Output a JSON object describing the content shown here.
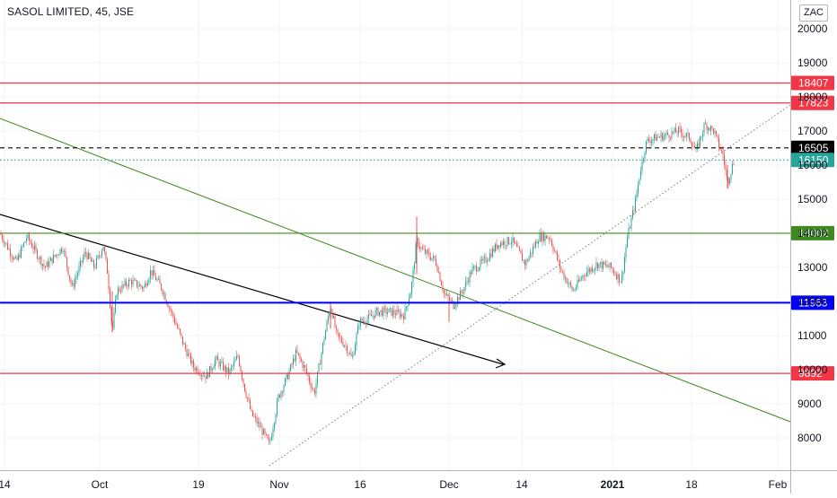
{
  "header": {
    "title": "SASOL LIMITED, 45, JSE",
    "unit_badge": "ZAC"
  },
  "chart_data": {
    "type": "candlestick",
    "symbol": "SASOL LIMITED",
    "interval": "45",
    "exchange": "JSE",
    "currency": "ZAC",
    "y_ticks": [
      8000,
      9000,
      10000,
      11000,
      12000,
      13000,
      14000,
      15000,
      16000,
      17000,
      18000,
      19000,
      20000
    ],
    "x_ticks": [
      "14",
      "Oct",
      "19",
      "Nov",
      "16",
      "Dec",
      "14",
      "2021",
      "18",
      "Feb"
    ],
    "price_path": [
      [
        0,
        14000
      ],
      [
        18,
        13150
      ],
      [
        30,
        13900
      ],
      [
        50,
        13000
      ],
      [
        70,
        13600
      ],
      [
        80,
        12400
      ],
      [
        95,
        13450
      ],
      [
        105,
        13000
      ],
      [
        115,
        13650
      ],
      [
        120,
        12800
      ],
      [
        125,
        11100
      ],
      [
        130,
        12300
      ],
      [
        145,
        12600
      ],
      [
        160,
        12400
      ],
      [
        168,
        12900
      ],
      [
        180,
        12400
      ],
      [
        195,
        11400
      ],
      [
        205,
        10700
      ],
      [
        215,
        10100
      ],
      [
        230,
        9800
      ],
      [
        240,
        10300
      ],
      [
        255,
        9900
      ],
      [
        265,
        10400
      ],
      [
        272,
        9500
      ],
      [
        280,
        8700
      ],
      [
        290,
        8300
      ],
      [
        300,
        7800
      ],
      [
        310,
        9200
      ],
      [
        320,
        9800
      ],
      [
        330,
        10500
      ],
      [
        340,
        10000
      ],
      [
        350,
        9300
      ],
      [
        360,
        10800
      ],
      [
        368,
        11900
      ],
      [
        375,
        11000
      ],
      [
        385,
        10700
      ],
      [
        392,
        10300
      ],
      [
        400,
        11400
      ],
      [
        410,
        11500
      ],
      [
        420,
        11700
      ],
      [
        435,
        11700
      ],
      [
        450,
        11600
      ],
      [
        458,
        12400
      ],
      [
        464,
        13800
      ],
      [
        470,
        13500
      ],
      [
        485,
        13200
      ],
      [
        495,
        12200
      ],
      [
        505,
        11900
      ],
      [
        515,
        12300
      ],
      [
        525,
        12900
      ],
      [
        540,
        13200
      ],
      [
        555,
        13700
      ],
      [
        570,
        13800
      ],
      [
        585,
        13100
      ],
      [
        600,
        13900
      ],
      [
        612,
        13900
      ],
      [
        625,
        12900
      ],
      [
        638,
        12300
      ],
      [
        650,
        12800
      ],
      [
        665,
        13100
      ],
      [
        680,
        13000
      ],
      [
        692,
        12600
      ],
      [
        698,
        13800
      ],
      [
        708,
        15000
      ],
      [
        714,
        16000
      ],
      [
        720,
        16700
      ],
      [
        730,
        16800
      ],
      [
        745,
        16900
      ],
      [
        755,
        17000
      ],
      [
        768,
        16800
      ],
      [
        775,
        16400
      ],
      [
        785,
        17200
      ],
      [
        795,
        17000
      ],
      [
        800,
        16600
      ],
      [
        805,
        16300
      ],
      [
        810,
        15500
      ],
      [
        817,
        16100
      ]
    ],
    "horizontal_levels": [
      {
        "value": 18407,
        "label": "18407",
        "style": "solid",
        "color": "#f23645"
      },
      {
        "value": 17823,
        "label": "17823",
        "style": "solid",
        "color": "#f23645"
      },
      {
        "value": 16505,
        "label": "16505",
        "style": "dashed",
        "color": "#000000"
      },
      {
        "value": 16150,
        "label": "16150",
        "style": "dotted",
        "color": "#26a69a"
      },
      {
        "value": 14002,
        "label": "14002",
        "style": "solid",
        "color": "#3d8b1e"
      },
      {
        "value": 11963,
        "label": "11963",
        "style": "solid",
        "color": "#0000ff"
      },
      {
        "value": 9892,
        "label": "9892",
        "style": "solid",
        "color": "#f23645"
      }
    ],
    "trend_lines": [
      {
        "style": "solid",
        "color": "#3d8b1e"
      },
      {
        "style": "arrow",
        "color": "#000000"
      },
      {
        "style": "dotted",
        "color": "#787b86"
      }
    ],
    "colors": {
      "up": "#26a69a",
      "down": "#ef5350"
    },
    "grid": true,
    "legend": "none"
  }
}
